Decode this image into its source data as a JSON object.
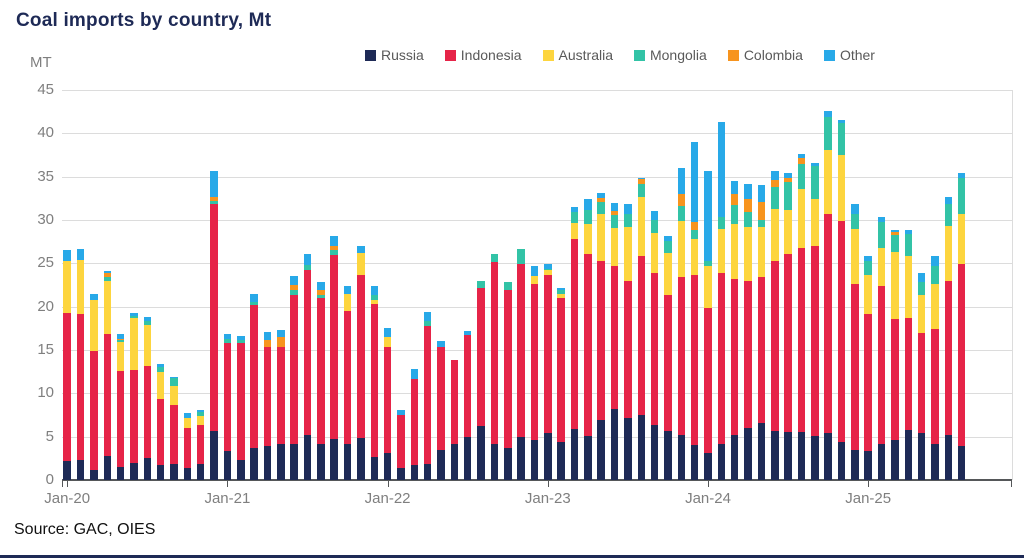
{
  "title": "Coal imports by country, Mt",
  "y_axis_unit": "MT",
  "source": "Source: GAC, OIES",
  "chart_data": {
    "type": "bar",
    "stacked": true,
    "title": "Coal imports by country, Mt",
    "xlabel": "",
    "ylabel": "MT",
    "ylim": [
      0,
      45
    ],
    "y_ticks": [
      0,
      5,
      10,
      15,
      20,
      25,
      30,
      35,
      40,
      45
    ],
    "grid": true,
    "legend_position": "top",
    "categories": [
      "Jan-20",
      "Feb-20",
      "Mar-20",
      "Apr-20",
      "May-20",
      "Jun-20",
      "Jul-20",
      "Aug-20",
      "Sep-20",
      "Oct-20",
      "Nov-20",
      "Dec-20",
      "Jan-21",
      "Feb-21",
      "Mar-21",
      "Apr-21",
      "May-21",
      "Jun-21",
      "Jul-21",
      "Aug-21",
      "Sep-21",
      "Oct-21",
      "Nov-21",
      "Dec-21",
      "Jan-22",
      "Feb-22",
      "Mar-22",
      "Apr-22",
      "May-22",
      "Jun-22",
      "Jul-22",
      "Aug-22",
      "Sep-22",
      "Oct-22",
      "Nov-22",
      "Dec-22",
      "Jan-23",
      "Feb-23",
      "Mar-23",
      "Apr-23",
      "May-23",
      "Jun-23",
      "Jul-23",
      "Aug-23",
      "Sep-23",
      "Oct-23",
      "Nov-23",
      "Dec-23",
      "Jan-24",
      "Feb-24",
      "Mar-24",
      "Apr-24",
      "May-24",
      "Jun-24",
      "Jul-24",
      "Aug-24",
      "Sep-24",
      "Oct-24",
      "Nov-24",
      "Dec-24",
      "Jan-25",
      "Feb-25",
      "Mar-25",
      "Apr-25",
      "May-25",
      "Jun-25",
      "Jul-25",
      "Aug-25"
    ],
    "x_tick_indices": [
      0,
      12,
      24,
      36,
      48,
      60
    ],
    "x_tick_labels": [
      "Jan-20",
      "Jan-21",
      "Jan-22",
      "Jan-23",
      "Jan-24",
      "Jan-25"
    ],
    "series": [
      {
        "name": "Russia",
        "color": "#1e2a56",
        "values": [
          2.2,
          2.3,
          1.2,
          2.8,
          1.5,
          2.0,
          2.5,
          1.7,
          1.9,
          1.4,
          1.9,
          5.6,
          3.3,
          2.3,
          3.7,
          3.9,
          4.1,
          4.1,
          5.2,
          4.2,
          4.7,
          4.2,
          4.9,
          2.7,
          3.1,
          1.4,
          1.7,
          1.9,
          3.5,
          4.1,
          5.0,
          6.2,
          4.2,
          3.7,
          5.0,
          4.6,
          5.4,
          4.4,
          5.9,
          5.1,
          6.9,
          8.2,
          7.1,
          7.5,
          6.4,
          5.6,
          5.2,
          4.0,
          3.1,
          4.1,
          5.2,
          6.0,
          6.6,
          5.7,
          5.5,
          5.5,
          5.1,
          5.4,
          4.4,
          3.5,
          3.3,
          4.2,
          4.6,
          5.8,
          5.4,
          4.1,
          5.2,
          3.9
        ]
      },
      {
        "name": "Indonesia",
        "color": "#e62448",
        "values": [
          17.1,
          16.9,
          13.7,
          14.0,
          11.1,
          10.7,
          10.7,
          7.6,
          6.7,
          4.6,
          4.5,
          26.2,
          12.5,
          13.5,
          16.5,
          11.4,
          11.2,
          17.3,
          19.0,
          16.8,
          21.3,
          15.3,
          18.7,
          17.6,
          12.2,
          6.1,
          9.9,
          15.9,
          11.9,
          9.8,
          11.7,
          16.0,
          20.9,
          18.2,
          19.9,
          18.0,
          18.2,
          16.6,
          21.9,
          21.0,
          18.4,
          16.5,
          15.9,
          18.4,
          17.5,
          15.8,
          18.2,
          19.6,
          16.7,
          19.8,
          18.0,
          17.0,
          16.8,
          19.6,
          20.6,
          21.3,
          21.9,
          25.3,
          25.5,
          19.1,
          15.8,
          18.2,
          14.0,
          12.9,
          11.6,
          13.3,
          17.8,
          21.0
        ]
      },
      {
        "name": "Australia",
        "color": "#fdd53e",
        "values": [
          6.0,
          6.2,
          5.9,
          6.2,
          3.3,
          6.0,
          4.7,
          3.2,
          2.2,
          1.2,
          1.0,
          0,
          0,
          0,
          0,
          0,
          0,
          0,
          0,
          0,
          0,
          2.0,
          2.6,
          0.5,
          1.2,
          0,
          0,
          0,
          0,
          0,
          0,
          0,
          0,
          0,
          0,
          0.9,
          0.6,
          0.5,
          1.9,
          3.4,
          5.4,
          4.4,
          6.2,
          6.7,
          4.6,
          4.8,
          6.5,
          4.2,
          4.9,
          5.1,
          6.3,
          6.2,
          5.8,
          6.0,
          5.0,
          6.8,
          5.4,
          7.4,
          7.6,
          6.4,
          4.6,
          4.4,
          7.7,
          7.2,
          4.4,
          5.2,
          6.3,
          5.8
        ]
      },
      {
        "name": "Mongolia",
        "color": "#32c3a6",
        "values": [
          0,
          0,
          0,
          0.4,
          0.2,
          0.2,
          0.4,
          0.5,
          1.0,
          0,
          0.4,
          0.4,
          0.5,
          0.4,
          0.3,
          0,
          0,
          0.5,
          0.6,
          0.4,
          0.5,
          0,
          0,
          0.5,
          0,
          0,
          0,
          0.6,
          0,
          0,
          0,
          0.8,
          1.0,
          0.9,
          1.8,
          0,
          0.2,
          0.4,
          1.2,
          1.7,
          1.4,
          1.5,
          1.5,
          1.6,
          1.5,
          1.4,
          1.7,
          1.0,
          0.6,
          1.3,
          2.2,
          1.7,
          0.8,
          2.5,
          3.3,
          2.9,
          3.8,
          3.8,
          3.7,
          1.7,
          1.6,
          3.0,
          2.0,
          2.5,
          1.4,
          2.1,
          2.6,
          4.2
        ]
      },
      {
        "name": "Colombia",
        "color": "#f7941e",
        "values": [
          0,
          0,
          0,
          0.5,
          0.2,
          0,
          0,
          0,
          0,
          0,
          0,
          0.5,
          0,
          0,
          0,
          0.8,
          1.2,
          0.6,
          0,
          0.5,
          0.5,
          0,
          0,
          0,
          0,
          0,
          0,
          0,
          0,
          0,
          0,
          0,
          0,
          0,
          0,
          0,
          0,
          0,
          0,
          0,
          0.4,
          0.4,
          0,
          0.5,
          0,
          0,
          1.4,
          1.0,
          0,
          0,
          1.3,
          1.5,
          2.1,
          0.8,
          0.4,
          0.6,
          0,
          0,
          0,
          0,
          0,
          0,
          0.3,
          0,
          0,
          0,
          0,
          0
        ]
      },
      {
        "name": "Other",
        "color": "#28a9e8",
        "values": [
          1.2,
          1.2,
          0.7,
          0.2,
          0.6,
          0.4,
          0.5,
          0.4,
          0.1,
          0.5,
          0.3,
          2.9,
          0.5,
          0.4,
          1.0,
          1.0,
          0.8,
          1.0,
          1.3,
          0.9,
          1.1,
          0.9,
          0.8,
          1.1,
          1.0,
          0.6,
          1.2,
          1.0,
          0.6,
          0,
          0.5,
          0,
          0,
          0,
          0,
          1.2,
          0.5,
          0.3,
          0.6,
          1.2,
          0.6,
          1.0,
          1.1,
          0.2,
          1.0,
          0.6,
          3.0,
          9.2,
          10.3,
          11.0,
          1.5,
          1.8,
          1.9,
          1.0,
          0.6,
          0.5,
          0.4,
          0.7,
          0.3,
          1.2,
          0.5,
          0.5,
          0.3,
          0.5,
          1.1,
          1.2,
          0.8,
          0.5
        ]
      }
    ]
  }
}
